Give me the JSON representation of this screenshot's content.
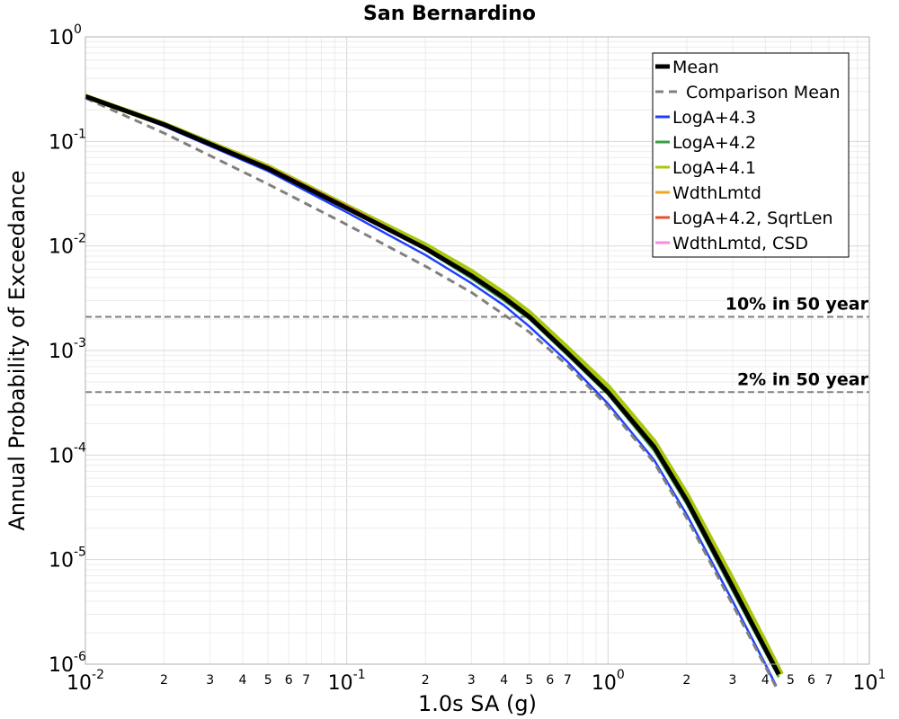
{
  "chart_data": {
    "type": "line",
    "title": "San Bernardino",
    "xlabel": "1.0s SA (g)",
    "ylabel": "Annual Probability of Exceedance",
    "xscale": "log",
    "yscale": "log",
    "xlim": [
      0.01,
      10
    ],
    "ylim": [
      1e-06,
      1
    ],
    "grid": true,
    "legend_position": "top-right",
    "x_major_ticks": [
      {
        "value": 0.01,
        "base": "10",
        "exp": "-2"
      },
      {
        "value": 0.1,
        "base": "10",
        "exp": "-1"
      },
      {
        "value": 1,
        "base": "10",
        "exp": "0"
      },
      {
        "value": 10,
        "base": "10",
        "exp": "1"
      }
    ],
    "y_major_ticks": [
      {
        "value": 1,
        "base": "10",
        "exp": "0"
      },
      {
        "value": 0.1,
        "base": "10",
        "exp": "-1"
      },
      {
        "value": 0.01,
        "base": "10",
        "exp": "-2"
      },
      {
        "value": 0.001,
        "base": "10",
        "exp": "-3"
      },
      {
        "value": 0.0001,
        "base": "10",
        "exp": "-4"
      },
      {
        "value": 1e-05,
        "base": "10",
        "exp": "-5"
      },
      {
        "value": 1e-06,
        "base": "10",
        "exp": "-6"
      }
    ],
    "x_minor_tick_labels": [
      "2",
      "3",
      "4",
      "5",
      "6",
      "7"
    ],
    "reference_lines": [
      {
        "label": "10% in 50 year",
        "y": 0.0021
      },
      {
        "label": "2% in 50 year",
        "y": 0.0004
      }
    ],
    "series": [
      {
        "name": "Mean",
        "color": "#000000",
        "style": "solid",
        "x": [
          0.01,
          0.02,
          0.05,
          0.1,
          0.2,
          0.3,
          0.4,
          0.5,
          0.7,
          1.0,
          1.5,
          2.0,
          3.0,
          4.0,
          4.5
        ],
        "y": [
          0.27,
          0.145,
          0.055,
          0.023,
          0.0095,
          0.0052,
          0.0032,
          0.0021,
          0.00095,
          0.0004,
          0.00012,
          3.7e-05,
          5.5e-06,
          1.4e-06,
          8e-07
        ]
      },
      {
        "name": "Comparison Mean",
        "color": "#808080",
        "style": "dashed",
        "x": [
          0.01,
          0.02,
          0.05,
          0.1,
          0.2,
          0.3,
          0.4,
          0.5,
          0.7,
          1.0,
          1.5,
          2.0,
          3.0,
          4.0,
          4.4
        ],
        "y": [
          0.26,
          0.12,
          0.039,
          0.016,
          0.0064,
          0.0036,
          0.0022,
          0.0015,
          0.00072,
          0.00029,
          8.5e-05,
          2.5e-05,
          3.7e-06,
          9.5e-07,
          6e-07
        ]
      },
      {
        "name": "LogA+4.3",
        "color": "#1f3fff",
        "style": "solid",
        "x": [
          0.01,
          0.02,
          0.05,
          0.1,
          0.2,
          0.3,
          0.4,
          0.5,
          0.7,
          1.0,
          1.5,
          2.0,
          3.0,
          4.0,
          4.4
        ],
        "y": [
          0.27,
          0.14,
          0.052,
          0.021,
          0.0082,
          0.0044,
          0.0027,
          0.0017,
          0.00078,
          0.00031,
          9e-05,
          2.7e-05,
          4e-06,
          1e-06,
          6.2e-07
        ]
      },
      {
        "name": "LogA+4.2",
        "color": "#3a9e45",
        "style": "solid",
        "x": [
          0.01,
          0.02,
          0.05,
          0.1,
          0.2,
          0.3,
          0.4,
          0.5,
          0.7,
          1.0,
          1.5,
          2.0,
          3.0,
          4.0,
          4.5
        ],
        "y": [
          0.27,
          0.145,
          0.055,
          0.023,
          0.0092,
          0.0049,
          0.003,
          0.002,
          0.0009,
          0.00038,
          0.00011,
          3.4e-05,
          5e-06,
          1.3e-06,
          7.5e-07
        ]
      },
      {
        "name": "LogA+4.1",
        "color": "#a8c80f",
        "style": "solid",
        "x": [
          0.01,
          0.02,
          0.05,
          0.1,
          0.2,
          0.3,
          0.4,
          0.5,
          0.7,
          1.0,
          1.5,
          2.0,
          3.0,
          4.0,
          4.6
        ],
        "y": [
          0.27,
          0.146,
          0.057,
          0.024,
          0.0102,
          0.0057,
          0.0035,
          0.0023,
          0.00105,
          0.00045,
          0.000135,
          4.2e-05,
          6.4e-06,
          1.6e-06,
          8e-07
        ]
      },
      {
        "name": "WdthLmtd",
        "color": "#f5a623",
        "style": "solid",
        "x": [
          0.01,
          0.02,
          0.05,
          0.1,
          0.2,
          0.3,
          0.4,
          0.5,
          0.7,
          1.0,
          1.5,
          2.0,
          3.0,
          4.0,
          4.5
        ],
        "y": [
          0.27,
          0.146,
          0.056,
          0.0235,
          0.0096,
          0.0052,
          0.0032,
          0.0021,
          0.00096,
          0.0004,
          0.00012,
          3.7e-05,
          5.5e-06,
          1.4e-06,
          8e-07
        ]
      },
      {
        "name": "LogA+4.2, SqrtLen",
        "color": "#e8502a",
        "style": "solid",
        "x": [
          0.01,
          0.02,
          0.05,
          0.1,
          0.2,
          0.3,
          0.4,
          0.5,
          0.7,
          1.0,
          1.5,
          2.0,
          3.0,
          4.0,
          4.5
        ],
        "y": [
          0.27,
          0.147,
          0.057,
          0.024,
          0.0097,
          0.0052,
          0.0032,
          0.0021,
          0.00095,
          0.0004,
          0.00012,
          3.7e-05,
          5.5e-06,
          1.4e-06,
          8e-07
        ]
      },
      {
        "name": "WdthLmtd, CSD",
        "color": "#f58ee0",
        "style": "solid",
        "x": [
          0.01,
          0.02,
          0.05,
          0.1,
          0.2,
          0.3,
          0.4,
          0.5,
          0.7,
          1.0,
          1.5,
          2.0,
          3.0,
          4.0,
          4.5
        ],
        "y": [
          0.27,
          0.145,
          0.055,
          0.023,
          0.0094,
          0.0051,
          0.0031,
          0.0021,
          0.00094,
          0.00039,
          0.00012,
          3.6e-05,
          5.4e-06,
          1.4e-06,
          8e-07
        ]
      }
    ]
  }
}
